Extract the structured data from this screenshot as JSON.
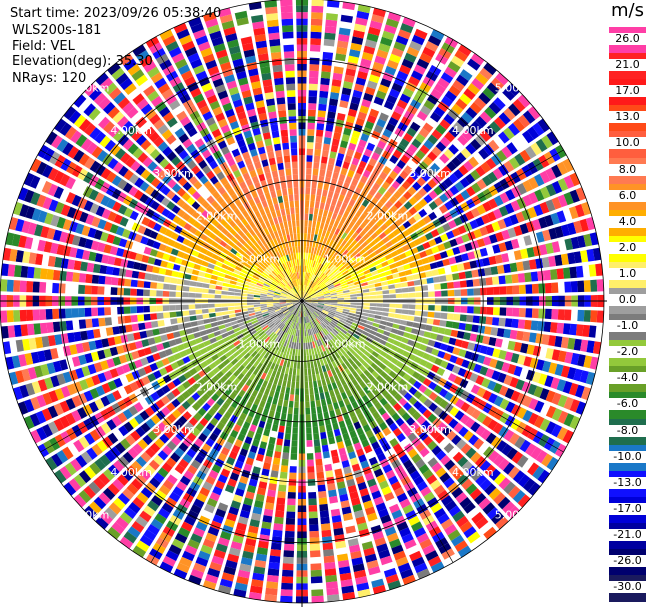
{
  "header": {
    "start_time_label": "Start time:",
    "start_time": "2023/09/26 05:38:40",
    "station": "WLS200s-181",
    "field_label": "Field:",
    "field": "VEL",
    "elevation_label": "Elevation(deg):",
    "elevation": "35.30",
    "nrays_label": "NRays:",
    "nrays": "120"
  },
  "colorbar": {
    "unit": "m/s",
    "ticks": [
      "26.0",
      "21.0",
      "17.0",
      "13.0",
      "10.0",
      "8.0",
      "6.0",
      "4.0",
      "2.0",
      "1.0",
      "0.0",
      "-1.0",
      "-2.0",
      "-4.0",
      "-6.0",
      "-8.0",
      "-10.0",
      "-13.0",
      "-17.0",
      "-21.0",
      "-26.0",
      "-30.0"
    ],
    "colors": [
      "#ff3ea6",
      "#ff2222",
      "#ff1a1a",
      "#ff4a18",
      "#ff5e3e",
      "#ff7a52",
      "#ff9326",
      "#ffae00",
      "#ffff00",
      "#ffef6a",
      "#9e9e9e",
      "#7c7c7c",
      "#93c93b",
      "#69a028",
      "#2a8a2a",
      "#1f6e4e",
      "#1a78c8",
      "#1010ff",
      "#0000d8",
      "#0000a0",
      "#00006e",
      "#1a1a5e"
    ]
  },
  "chart_data": {
    "type": "heatmap",
    "title": "",
    "field": "VEL",
    "units": "m/s",
    "nrays": 120,
    "elevation_deg": 35.3,
    "range_rings": [
      {
        "range_km": 1.0,
        "label": "1.00km"
      },
      {
        "range_km": 2.0,
        "label": "2.00km"
      },
      {
        "range_km": 3.0,
        "label": "3.00km"
      },
      {
        "range_km": 4.0,
        "label": "4.00km"
      },
      {
        "range_km": 5.0,
        "label": "5.00km"
      }
    ],
    "max_range_km": 5.0,
    "color_scale": [
      {
        "min": 21.0,
        "max": 26.0,
        "color": "#ff3ea6"
      },
      {
        "min": 17.0,
        "max": 21.0,
        "color": "#ff2222"
      },
      {
        "min": 13.0,
        "max": 17.0,
        "color": "#ff1a1a"
      },
      {
        "min": 10.0,
        "max": 13.0,
        "color": "#ff4a18"
      },
      {
        "min": 8.0,
        "max": 10.0,
        "color": "#ff5e3e"
      },
      {
        "min": 6.0,
        "max": 8.0,
        "color": "#ff7a52"
      },
      {
        "min": 4.0,
        "max": 6.0,
        "color": "#ff9326"
      },
      {
        "min": 2.0,
        "max": 4.0,
        "color": "#ffae00"
      },
      {
        "min": 1.0,
        "max": 2.0,
        "color": "#ffff00"
      },
      {
        "min": 0.0,
        "max": 1.0,
        "color": "#ffef6a"
      },
      {
        "min": -1.0,
        "max": 0.0,
        "color": "#9e9e9e"
      },
      {
        "min": -2.0,
        "max": -1.0,
        "color": "#7c7c7c"
      },
      {
        "min": -4.0,
        "max": -2.0,
        "color": "#93c93b"
      },
      {
        "min": -6.0,
        "max": -4.0,
        "color": "#69a028"
      },
      {
        "min": -8.0,
        "max": -6.0,
        "color": "#2a8a2a"
      },
      {
        "min": -10.0,
        "max": -8.0,
        "color": "#1f6e4e"
      },
      {
        "min": -13.0,
        "max": -10.0,
        "color": "#1a78c8"
      },
      {
        "min": -17.0,
        "max": -13.0,
        "color": "#1010ff"
      },
      {
        "min": -21.0,
        "max": -17.0,
        "color": "#0000d8"
      },
      {
        "min": -26.0,
        "max": -21.0,
        "color": "#0000a0"
      },
      {
        "min": -30.0,
        "max": -26.0,
        "color": "#00006e"
      }
    ],
    "velocity_pattern": {
      "description_of_field": "near range: positive (warm) velocities to the north, negative (green) to the south, grey near east-west axis; far range noisy",
      "north_max": 8.0,
      "south_min": -8.0,
      "noise_beyond_km": 2.6
    }
  }
}
